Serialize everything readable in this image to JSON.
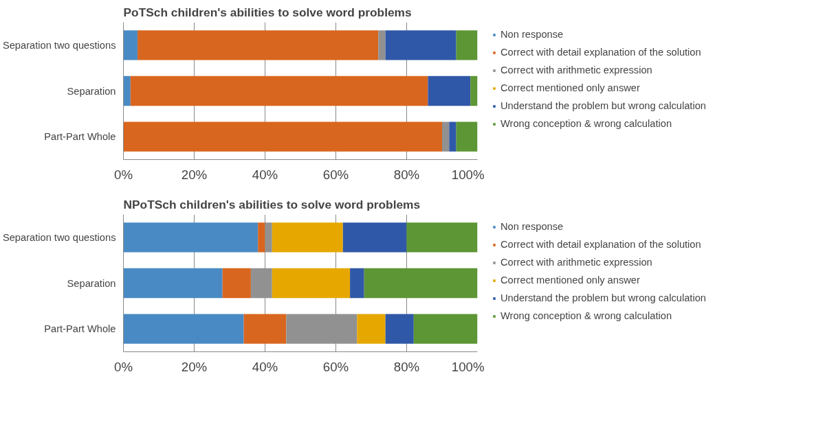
{
  "chart_data": [
    {
      "type": "bar",
      "orientation": "horizontal",
      "stacked": true,
      "title": "PoTSch children's abilities to solve word problems",
      "categories": [
        "Separation two questions",
        "Separation",
        "Part-Part Whole"
      ],
      "series": [
        {
          "name": "Non response",
          "color": "#4a8ac4",
          "values": [
            4,
            2,
            0
          ]
        },
        {
          "name": "Correct with detail explanation of the solution",
          "color": "#d9661f",
          "values": [
            68,
            84,
            90
          ]
        },
        {
          "name": "Correct with arithmetic expression",
          "color": "#919191",
          "values": [
            2,
            0,
            2
          ]
        },
        {
          "name": "Correct mentioned only answer",
          "color": "#e6a800",
          "values": [
            0,
            0,
            0
          ]
        },
        {
          "name": "Understand the problem but wrong calculation",
          "color": "#3058a8",
          "values": [
            20,
            12,
            2
          ]
        },
        {
          "name": "Wrong conception & wrong calculation",
          "color": "#5d9634",
          "values": [
            6,
            2,
            6
          ]
        }
      ],
      "xlim": [
        0,
        100
      ],
      "xticks": [
        {
          "value": 0,
          "label": "0%"
        },
        {
          "value": 20,
          "label": "20%"
        },
        {
          "value": 40,
          "label": "40%"
        },
        {
          "value": 60,
          "label": "60%"
        },
        {
          "value": 80,
          "label": "80%"
        },
        {
          "value": 100,
          "label": "100%"
        }
      ],
      "grid": "x",
      "legend": "right"
    },
    {
      "type": "bar",
      "orientation": "horizontal",
      "stacked": true,
      "title": "NPoTSch children's abilities to solve word problems",
      "categories": [
        "Separation two questions",
        "Separation",
        "Part-Part Whole"
      ],
      "series": [
        {
          "name": "Non response",
          "color": "#4a8ac4",
          "values": [
            38,
            28,
            34
          ]
        },
        {
          "name": "Correct with detail explanation of the solution",
          "color": "#d9661f",
          "values": [
            2,
            8,
            12
          ]
        },
        {
          "name": "Correct with arithmetic expression",
          "color": "#919191",
          "values": [
            2,
            6,
            20
          ]
        },
        {
          "name": "Correct mentioned only answer",
          "color": "#e6a800",
          "values": [
            20,
            22,
            8
          ]
        },
        {
          "name": "Understand the problem but wrong calculation",
          "color": "#3058a8",
          "values": [
            18,
            4,
            8
          ]
        },
        {
          "name": "Wrong conception & wrong calculation",
          "color": "#5d9634",
          "values": [
            20,
            32,
            18
          ]
        }
      ],
      "xlim": [
        0,
        100
      ],
      "xticks": [
        {
          "value": 0,
          "label": "0%"
        },
        {
          "value": 20,
          "label": "20%"
        },
        {
          "value": 40,
          "label": "40%"
        },
        {
          "value": 60,
          "label": "60%"
        },
        {
          "value": 80,
          "label": "80%"
        },
        {
          "value": 100,
          "label": "100%"
        }
      ],
      "grid": "x",
      "legend": "right"
    }
  ]
}
